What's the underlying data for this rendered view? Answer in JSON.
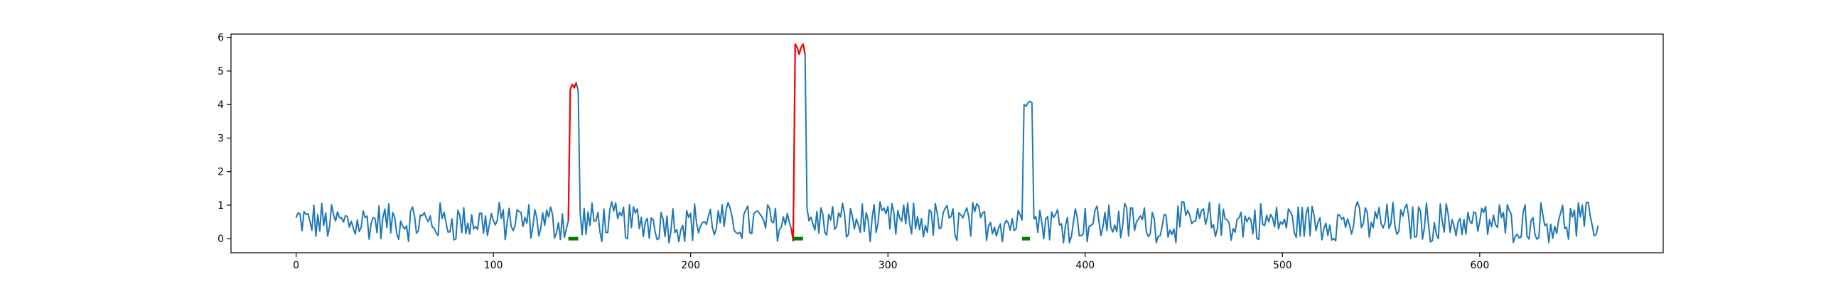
{
  "chart_data": {
    "type": "line",
    "title": "",
    "xlabel": "",
    "ylabel": "",
    "xlim": [
      -33,
      693
    ],
    "ylim": [
      -0.42,
      6.1
    ],
    "xticks": [
      0,
      100,
      200,
      300,
      400,
      500,
      600
    ],
    "yticks": [
      0,
      1,
      2,
      3,
      4,
      5,
      6
    ],
    "grid": false,
    "legend": "none",
    "n_points": 661,
    "baseline": {
      "mean": 0.5,
      "amplitude": 0.55
    },
    "series": [
      {
        "role": "signal",
        "color": "#1f77b4",
        "spikes": [
          {
            "x_start": 139,
            "x_end": 143,
            "values": [
              4.45,
              4.6,
              4.5,
              4.65,
              4.4
            ]
          },
          {
            "x_start": 253,
            "x_end": 258,
            "values": [
              5.8,
              5.7,
              5.5,
              5.7,
              5.8,
              5.5
            ]
          },
          {
            "x_start": 369,
            "x_end": 373,
            "values": [
              4.0,
              3.95,
              4.05,
              4.1,
              4.05
            ]
          }
        ]
      },
      {
        "role": "highlighted-anomaly",
        "color": "#ff0000",
        "segments": [
          {
            "x_start": 138,
            "x_end": 142
          },
          {
            "x_start": 251,
            "x_end": 258
          }
        ]
      }
    ],
    "markers": {
      "color": "#008000",
      "y": 0.0,
      "ranges": [
        [
          138,
          143
        ],
        [
          252,
          257
        ],
        [
          368,
          372
        ]
      ]
    },
    "colors": {
      "line": "#1f77b4",
      "anomaly": "#ff0000",
      "marker": "#008000"
    }
  }
}
